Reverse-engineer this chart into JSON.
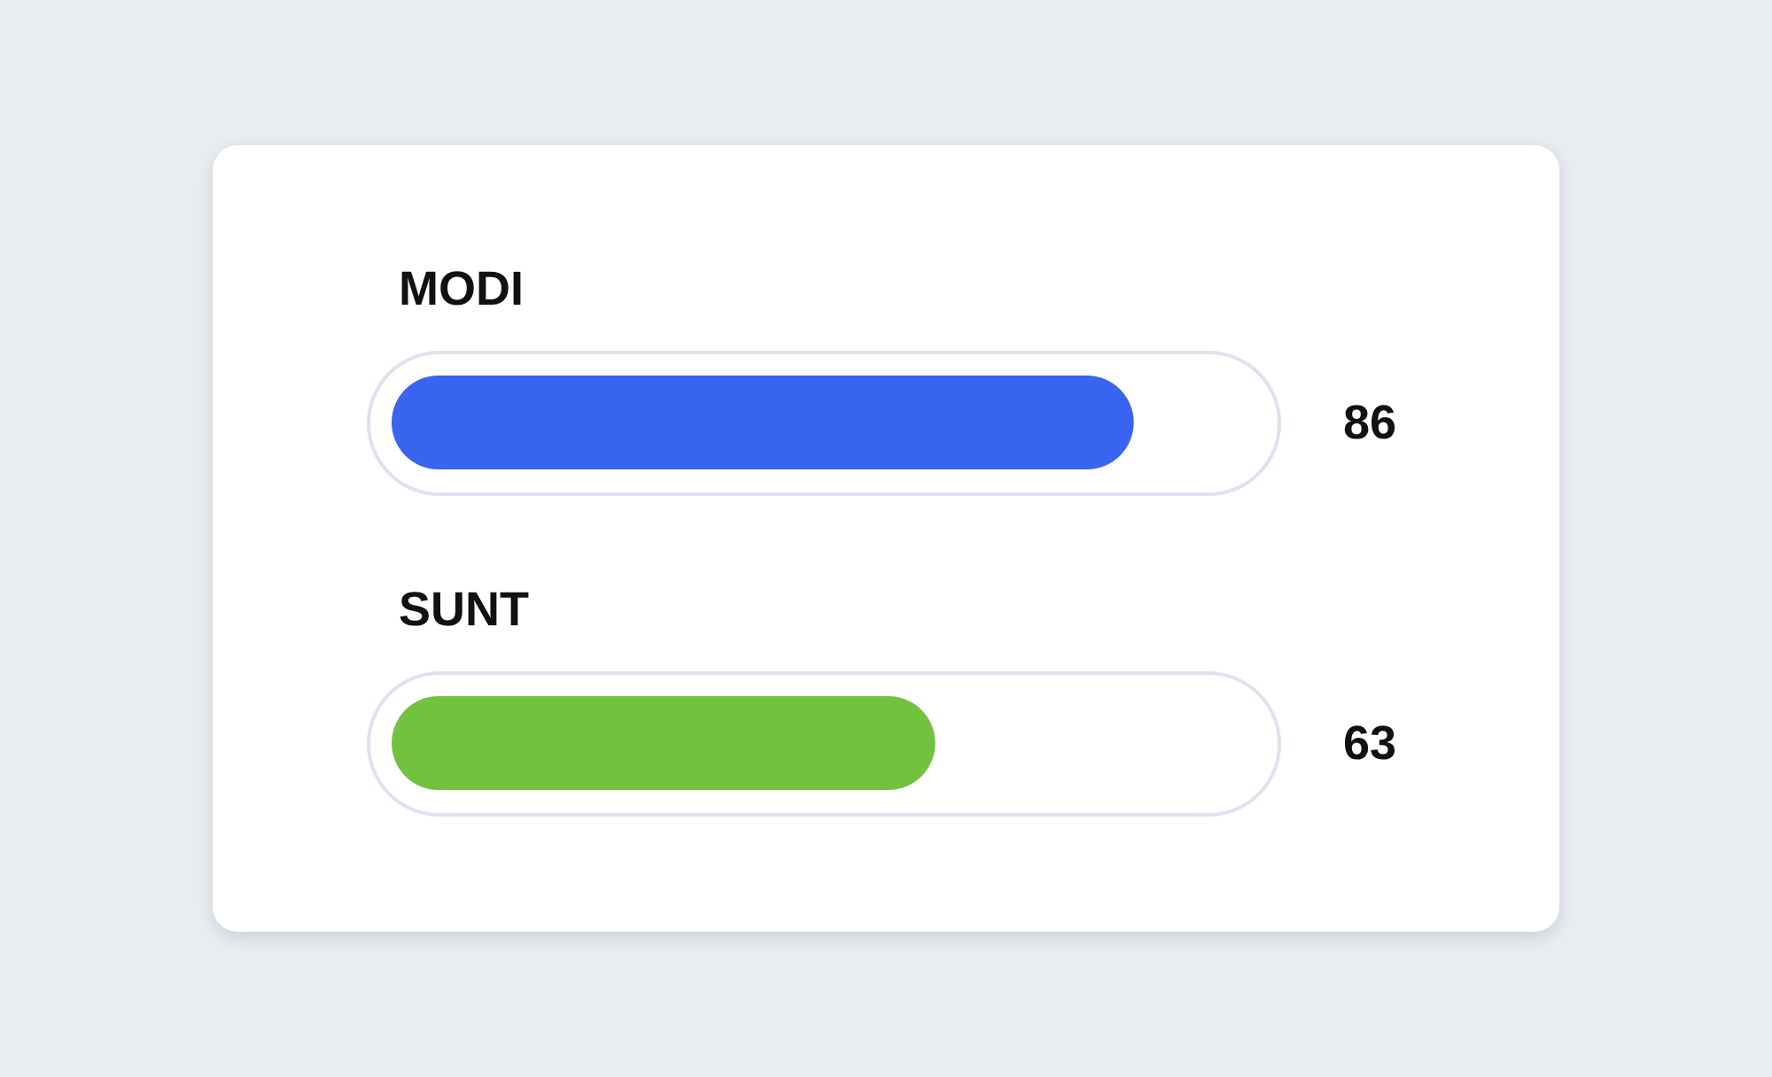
{
  "chart_data": {
    "type": "bar",
    "orientation": "horizontal",
    "categories": [
      "MODI",
      "SUNT"
    ],
    "values": [
      86,
      63
    ],
    "colors": [
      "#3864f0",
      "#72c240"
    ],
    "data_labels": true,
    "tick_labels": "y"
  }
}
